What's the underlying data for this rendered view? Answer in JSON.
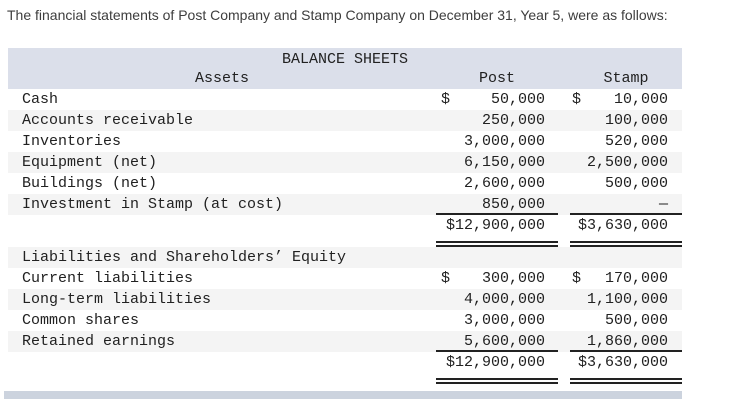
{
  "intro": "The financial statements of Post Company and Stamp Company on December 31, Year 5, were as follows:",
  "table": {
    "title": "BALANCE SHEETS",
    "columns": {
      "assets": "Assets",
      "post": "Post",
      "stamp": "Stamp"
    },
    "asset_rows": [
      {
        "label": "Cash",
        "post_cur": "$",
        "post": "50,000",
        "stamp_cur": "$",
        "stamp": "10,000"
      },
      {
        "label": "Accounts receivable",
        "post": "250,000",
        "stamp": "100,000"
      },
      {
        "label": "Inventories",
        "post": "3,000,000",
        "stamp": "520,000"
      },
      {
        "label": "Equipment (net)",
        "post": "6,150,000",
        "stamp": "2,500,000"
      },
      {
        "label": "Buildings (net)",
        "post": "2,600,000",
        "stamp": "500,000"
      },
      {
        "label": "Investment in Stamp (at cost)",
        "post": "850,000",
        "stamp": "—"
      }
    ],
    "assets_total": {
      "post": "$12,900,000",
      "stamp": "$3,630,000"
    },
    "section2_header": "Liabilities and Shareholders’ Equity",
    "liability_rows": [
      {
        "label": "Current liabilities",
        "post_cur": "$",
        "post": "300,000",
        "stamp_cur": "$",
        "stamp": "170,000"
      },
      {
        "label": "Long-term liabilities",
        "post": "4,000,000",
        "stamp": "1,100,000"
      },
      {
        "label": "Common shares",
        "post": "3,000,000",
        "stamp": "500,000"
      },
      {
        "label": "Retained earnings",
        "post": "5,600,000",
        "stamp": "1,860,000"
      }
    ],
    "liabilities_total": {
      "post": "$12,900,000",
      "stamp": "$3,630,000"
    }
  },
  "colors": {
    "header_bg": "#dbdfea",
    "alt_row_bg": "#f4f4f4",
    "footer_bar": "#ccd3de",
    "rule": "#222222",
    "text": "#212121",
    "intro_text": "#3d3d3d"
  }
}
